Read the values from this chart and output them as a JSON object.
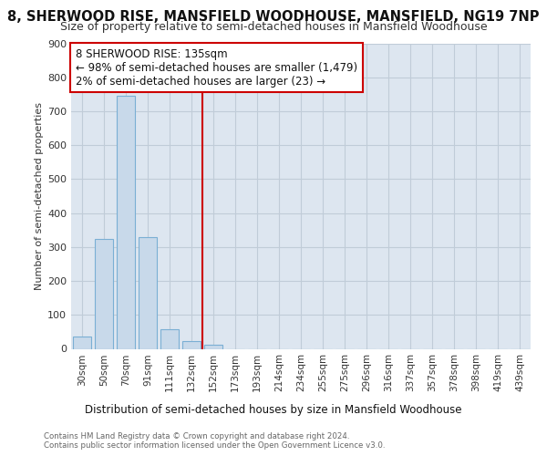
{
  "title": "8, SHERWOOD RISE, MANSFIELD WOODHOUSE, MANSFIELD, NG19 7NP",
  "subtitle": "Size of property relative to semi-detached houses in Mansfield Woodhouse",
  "xlabel_bottom": "Distribution of semi-detached houses by size in Mansfield Woodhouse",
  "ylabel": "Number of semi-detached properties",
  "categories": [
    "30sqm",
    "50sqm",
    "70sqm",
    "91sqm",
    "111sqm",
    "132sqm",
    "152sqm",
    "173sqm",
    "193sqm",
    "214sqm",
    "234sqm",
    "255sqm",
    "275sqm",
    "296sqm",
    "316sqm",
    "337sqm",
    "357sqm",
    "378sqm",
    "398sqm",
    "419sqm",
    "439sqm"
  ],
  "values": [
    35,
    325,
    745,
    330,
    57,
    23,
    11,
    0,
    0,
    0,
    0,
    0,
    0,
    0,
    0,
    0,
    0,
    0,
    0,
    0,
    0
  ],
  "bar_color": "#c8d9ea",
  "bar_edge_color": "#7aafd4",
  "vline_x": 5.5,
  "annotation_line1": "8 SHERWOOD RISE: 135sqm",
  "annotation_line2": "← 98% of semi-detached houses are smaller (1,479)",
  "annotation_line3": "2% of semi-detached houses are larger (23) →",
  "annotation_box_color": "#ffffff",
  "annotation_box_edge": "#cc0000",
  "vline_color": "#cc0000",
  "ylim": [
    0,
    900
  ],
  "yticks": [
    0,
    100,
    200,
    300,
    400,
    500,
    600,
    700,
    800,
    900
  ],
  "footer_line1": "Contains HM Land Registry data © Crown copyright and database right 2024.",
  "footer_line2": "Contains public sector information licensed under the Open Government Licence v3.0.",
  "bg_color": "#ffffff",
  "plot_bg_color": "#dde6f0",
  "grid_color": "#c0ccd8",
  "title_fontsize": 10.5,
  "subtitle_fontsize": 9,
  "ann_fontsize": 8.5,
  "ylabel_fontsize": 8,
  "xtick_fontsize": 7.5,
  "ytick_fontsize": 8
}
